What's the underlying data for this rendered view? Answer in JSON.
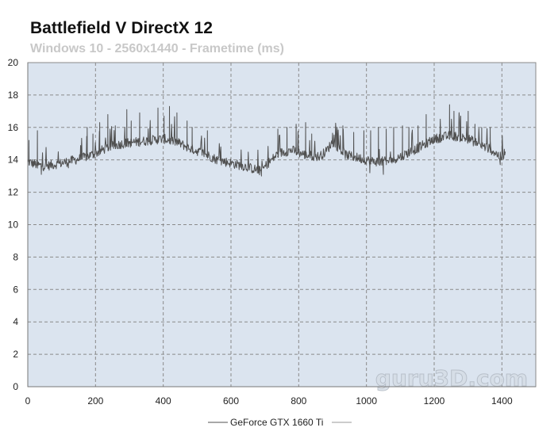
{
  "chart_data": {
    "type": "line",
    "title": "Battlefield V DirectX 12",
    "subtitle": "Windows 10 - 2560x1440 - Frametime (ms)",
    "xlabel": "",
    "ylabel": "",
    "xlim": [
      0,
      1500
    ],
    "ylim": [
      0,
      20
    ],
    "x_ticks": [
      0,
      200,
      400,
      600,
      800,
      1000,
      1200,
      1400
    ],
    "y_ticks": [
      0,
      2,
      4,
      6,
      8,
      10,
      12,
      14,
      16,
      18,
      20
    ],
    "grid": true,
    "legend_position": "bottom-center",
    "series": [
      {
        "name": "GeForce GTX 1660 Ti",
        "color": "#505050",
        "baseline": [
          [
            0,
            13.9
          ],
          [
            25,
            13.7
          ],
          [
            50,
            13.6
          ],
          [
            100,
            13.8
          ],
          [
            160,
            14.1
          ],
          [
            200,
            14.4
          ],
          [
            240,
            14.8
          ],
          [
            280,
            15.0
          ],
          [
            320,
            15.1
          ],
          [
            360,
            15.2
          ],
          [
            400,
            15.3
          ],
          [
            440,
            15.1
          ],
          [
            480,
            14.7
          ],
          [
            520,
            14.4
          ],
          [
            560,
            14.0
          ],
          [
            600,
            13.8
          ],
          [
            640,
            13.6
          ],
          [
            690,
            13.3
          ],
          [
            705,
            13.7
          ],
          [
            740,
            14.4
          ],
          [
            780,
            14.6
          ],
          [
            820,
            14.3
          ],
          [
            860,
            14.2
          ],
          [
            880,
            14.5
          ],
          [
            900,
            15.1
          ],
          [
            940,
            14.3
          ],
          [
            980,
            14.1
          ],
          [
            1020,
            13.9
          ],
          [
            1060,
            13.9
          ],
          [
            1100,
            14.2
          ],
          [
            1150,
            14.7
          ],
          [
            1200,
            15.3
          ],
          [
            1250,
            15.5
          ],
          [
            1300,
            15.3
          ],
          [
            1340,
            14.9
          ],
          [
            1370,
            14.6
          ],
          [
            1400,
            14.1
          ],
          [
            1410,
            14.6
          ]
        ],
        "spikes": [
          [
            3,
            15.2
          ],
          [
            28,
            15.8
          ],
          [
            175,
            16.0
          ],
          [
            192,
            15.6
          ],
          [
            212,
            16.3
          ],
          [
            236,
            16.8
          ],
          [
            258,
            16.1
          ],
          [
            292,
            17.1
          ],
          [
            305,
            16.4
          ],
          [
            330,
            16.9
          ],
          [
            360,
            16.0
          ],
          [
            384,
            17.2
          ],
          [
            402,
            16.7
          ],
          [
            418,
            17.3
          ],
          [
            440,
            16.9
          ],
          [
            470,
            16.4
          ],
          [
            485,
            16.0
          ],
          [
            530,
            15.8
          ],
          [
            738,
            15.9
          ],
          [
            765,
            16.0
          ],
          [
            792,
            16.2
          ],
          [
            820,
            16.3
          ],
          [
            838,
            15.6
          ],
          [
            930,
            16.1
          ],
          [
            962,
            15.7
          ],
          [
            992,
            15.8
          ],
          [
            1012,
            15.8
          ],
          [
            1035,
            16.0
          ],
          [
            1058,
            15.9
          ],
          [
            1080,
            16.0
          ],
          [
            1106,
            16.1
          ],
          [
            1125,
            16.0
          ],
          [
            1152,
            16.1
          ],
          [
            1176,
            16.8
          ],
          [
            1198,
            15.4
          ],
          [
            1245,
            17.4
          ],
          [
            1258,
            17.0
          ],
          [
            1278,
            16.7
          ],
          [
            1300,
            17.0
          ],
          [
            1320,
            16.2
          ],
          [
            1340,
            16.0
          ],
          [
            1365,
            16.0
          ]
        ],
        "dips": [
          [
            40,
            13.1
          ],
          [
            120,
            13.5
          ],
          [
            690,
            13.0
          ],
          [
            1010,
            13.2
          ],
          [
            1050,
            13.1
          ],
          [
            1395,
            13.7
          ]
        ]
      }
    ]
  },
  "watermark": "guru3D.com"
}
